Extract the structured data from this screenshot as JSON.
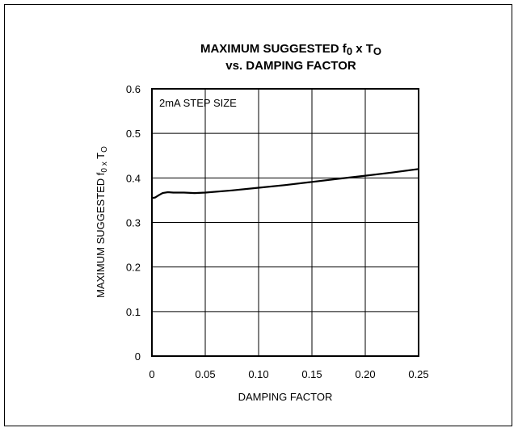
{
  "chart_data": {
    "type": "line",
    "title": {
      "main": "MAXIMUM SUGGESTED f",
      "main_sub": "0",
      "main_mid": " x T",
      "main_sub2": "O",
      "line2": "vs. DAMPING FACTOR"
    },
    "xlabel": "DAMPING FACTOR",
    "ylabel": {
      "main": "MAXIMUM SUGGESTED f",
      "sub": "0 x",
      "end": " T",
      "sub2": "O"
    },
    "annotation": "2mA STEP SIZE",
    "xlim": [
      0,
      0.25
    ],
    "ylim": [
      0,
      0.6
    ],
    "x_ticks": [
      "0",
      "0.05",
      "0.10",
      "0.15",
      "0.20",
      "0.25"
    ],
    "y_ticks": [
      "0",
      "0.1",
      "0.2",
      "0.3",
      "0.4",
      "0.5",
      "0.6"
    ],
    "grid": true,
    "series": [
      {
        "x": [
          0,
          0.003,
          0.007,
          0.01,
          0.015,
          0.02,
          0.03,
          0.04,
          0.05,
          0.075,
          0.1,
          0.125,
          0.15,
          0.175,
          0.2,
          0.225,
          0.25
        ],
        "y": [
          0.355,
          0.356,
          0.362,
          0.366,
          0.368,
          0.367,
          0.367,
          0.366,
          0.367,
          0.372,
          0.378,
          0.384,
          0.391,
          0.398,
          0.405,
          0.412,
          0.42
        ]
      }
    ]
  }
}
